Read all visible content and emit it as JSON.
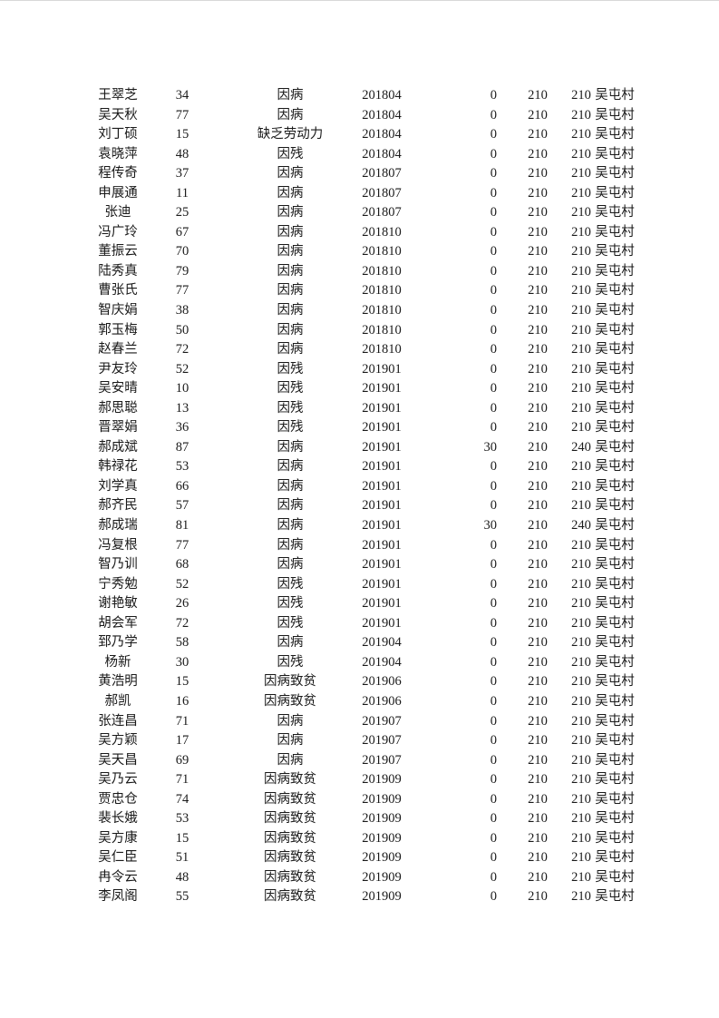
{
  "colors": {
    "text": "#1a1a1a",
    "background": "#ffffff"
  },
  "table": {
    "rows": [
      [
        "王翠芝",
        "34",
        "因病",
        "201804",
        "0",
        "210",
        "210",
        "吴屯村"
      ],
      [
        "吴天秋",
        "77",
        "因病",
        "201804",
        "0",
        "210",
        "210",
        "吴屯村"
      ],
      [
        "刘丁硕",
        "15",
        "缺乏劳动力",
        "201804",
        "0",
        "210",
        "210",
        "吴屯村"
      ],
      [
        "袁晓萍",
        "48",
        "因残",
        "201804",
        "0",
        "210",
        "210",
        "吴屯村"
      ],
      [
        "程传奇",
        "37",
        "因病",
        "201807",
        "0",
        "210",
        "210",
        "吴屯村"
      ],
      [
        "申展通",
        "11",
        "因病",
        "201807",
        "0",
        "210",
        "210",
        "吴屯村"
      ],
      [
        "张迪",
        "25",
        "因病",
        "201807",
        "0",
        "210",
        "210",
        "吴屯村"
      ],
      [
        "冯广玲",
        "67",
        "因病",
        "201810",
        "0",
        "210",
        "210",
        "吴屯村"
      ],
      [
        "董振云",
        "70",
        "因病",
        "201810",
        "0",
        "210",
        "210",
        "吴屯村"
      ],
      [
        "陆秀真",
        "79",
        "因病",
        "201810",
        "0",
        "210",
        "210",
        "吴屯村"
      ],
      [
        "曹张氏",
        "77",
        "因病",
        "201810",
        "0",
        "210",
        "210",
        "吴屯村"
      ],
      [
        "智庆娟",
        "38",
        "因病",
        "201810",
        "0",
        "210",
        "210",
        "吴屯村"
      ],
      [
        "郭玉梅",
        "50",
        "因病",
        "201810",
        "0",
        "210",
        "210",
        "吴屯村"
      ],
      [
        "赵春兰",
        "72",
        "因病",
        "201810",
        "0",
        "210",
        "210",
        "吴屯村"
      ],
      [
        "尹友玲",
        "52",
        "因残",
        "201901",
        "0",
        "210",
        "210",
        "吴屯村"
      ],
      [
        "吴安晴",
        "10",
        "因残",
        "201901",
        "0",
        "210",
        "210",
        "吴屯村"
      ],
      [
        "郝思聪",
        "13",
        "因残",
        "201901",
        "0",
        "210",
        "210",
        "吴屯村"
      ],
      [
        "晋翠娟",
        "36",
        "因残",
        "201901",
        "0",
        "210",
        "210",
        "吴屯村"
      ],
      [
        "郝成斌",
        "87",
        "因病",
        "201901",
        "30",
        "210",
        "240",
        "吴屯村"
      ],
      [
        "韩禄花",
        "53",
        "因病",
        "201901",
        "0",
        "210",
        "210",
        "吴屯村"
      ],
      [
        "刘学真",
        "66",
        "因病",
        "201901",
        "0",
        "210",
        "210",
        "吴屯村"
      ],
      [
        "郝齐民",
        "57",
        "因病",
        "201901",
        "0",
        "210",
        "210",
        "吴屯村"
      ],
      [
        "郝成瑞",
        "81",
        "因病",
        "201901",
        "30",
        "210",
        "240",
        "吴屯村"
      ],
      [
        "冯复根",
        "77",
        "因病",
        "201901",
        "0",
        "210",
        "210",
        "吴屯村"
      ],
      [
        "智乃训",
        "68",
        "因病",
        "201901",
        "0",
        "210",
        "210",
        "吴屯村"
      ],
      [
        "宁秀勉",
        "52",
        "因残",
        "201901",
        "0",
        "210",
        "210",
        "吴屯村"
      ],
      [
        "谢艳敏",
        "26",
        "因残",
        "201901",
        "0",
        "210",
        "210",
        "吴屯村"
      ],
      [
        "胡会军",
        "72",
        "因残",
        "201901",
        "0",
        "210",
        "210",
        "吴屯村"
      ],
      [
        "郅乃学",
        "58",
        "因病",
        "201904",
        "0",
        "210",
        "210",
        "吴屯村"
      ],
      [
        "杨新",
        "30",
        "因残",
        "201904",
        "0",
        "210",
        "210",
        "吴屯村"
      ],
      [
        "黄浩明",
        "15",
        "因病致贫",
        "201906",
        "0",
        "210",
        "210",
        "吴屯村"
      ],
      [
        "郝凯",
        "16",
        "因病致贫",
        "201906",
        "0",
        "210",
        "210",
        "吴屯村"
      ],
      [
        "张连昌",
        "71",
        "因病",
        "201907",
        "0",
        "210",
        "210",
        "吴屯村"
      ],
      [
        "吴方颖",
        "17",
        "因病",
        "201907",
        "0",
        "210",
        "210",
        "吴屯村"
      ],
      [
        "吴天昌",
        "69",
        "因病",
        "201907",
        "0",
        "210",
        "210",
        "吴屯村"
      ],
      [
        "吴乃云",
        "71",
        "因病致贫",
        "201909",
        "0",
        "210",
        "210",
        "吴屯村"
      ],
      [
        "贾忠仓",
        "74",
        "因病致贫",
        "201909",
        "0",
        "210",
        "210",
        "吴屯村"
      ],
      [
        "裴长娥",
        "53",
        "因病致贫",
        "201909",
        "0",
        "210",
        "210",
        "吴屯村"
      ],
      [
        "吴方康",
        "15",
        "因病致贫",
        "201909",
        "0",
        "210",
        "210",
        "吴屯村"
      ],
      [
        "吴仁臣",
        "51",
        "因病致贫",
        "201909",
        "0",
        "210",
        "210",
        "吴屯村"
      ],
      [
        "冉令云",
        "48",
        "因病致贫",
        "201909",
        "0",
        "210",
        "210",
        "吴屯村"
      ],
      [
        "李凤阁",
        "55",
        "因病致贫",
        "201909",
        "0",
        "210",
        "210",
        "吴屯村"
      ]
    ]
  }
}
